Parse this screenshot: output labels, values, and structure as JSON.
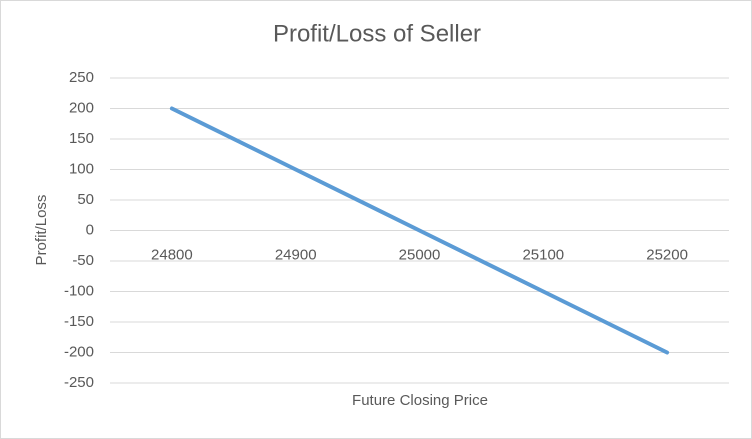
{
  "chart_data": {
    "type": "line",
    "title": "Profit/Loss of Seller",
    "x_label": "Future Closing Price",
    "y_label": "Profit/Loss",
    "categories": [
      "24800",
      "24900",
      "25000",
      "25100",
      "25200"
    ],
    "values": [
      200,
      100,
      0,
      -100,
      -200
    ],
    "color": "#5b9bd5",
    "ylim": [
      -250,
      250
    ],
    "yticks": [
      -250,
      -200,
      -150,
      -100,
      -50,
      0,
      50,
      100,
      150,
      200,
      250
    ],
    "grid": true
  }
}
